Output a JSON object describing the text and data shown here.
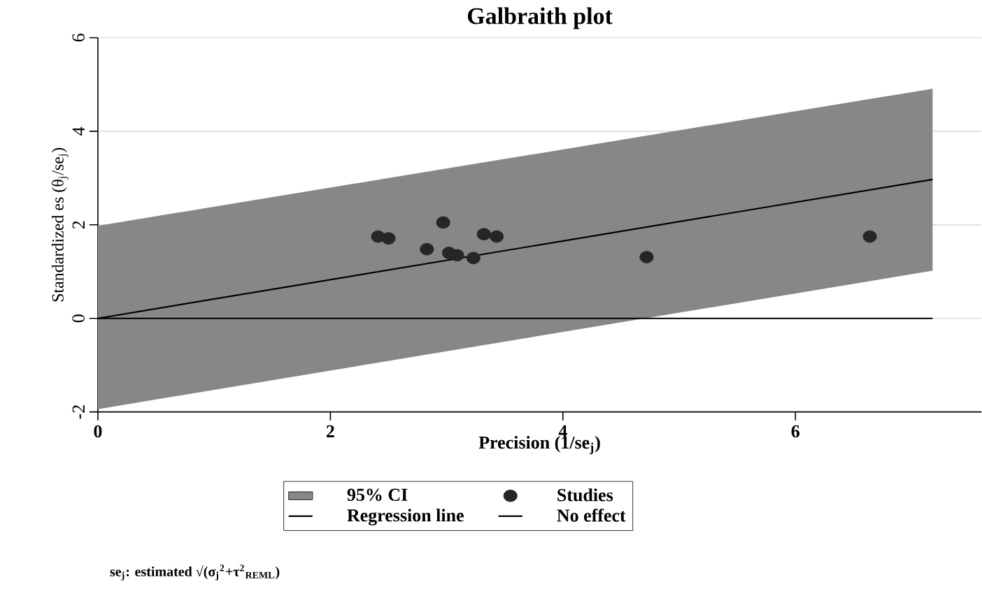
{
  "chart_data": {
    "type": "scatter",
    "title": "Galbraith plot",
    "xlabel": "Precision (1/se$_{j}$)",
    "ylabel": "Standardized es  (θ$_{j}$/se$_{j}$)",
    "xlim": [
      0,
      7.6
    ],
    "ylim": [
      -2,
      6
    ],
    "xticks": [
      0,
      2,
      4,
      6
    ],
    "yticks": [
      -2,
      0,
      2,
      4,
      6
    ],
    "grid": "y",
    "legend": "bottom",
    "series": [
      {
        "name": "95% CI",
        "type": "area",
        "color": "#878787"
      },
      {
        "name": "Studies",
        "color": "#262626",
        "marker": "circle",
        "x": [
          2.41,
          2.5,
          2.83,
          2.97,
          3.02,
          3.09,
          3.23,
          3.32,
          3.43,
          4.72,
          6.64
        ],
        "values": [
          1.75,
          1.71,
          1.48,
          2.05,
          1.4,
          1.35,
          1.29,
          1.8,
          1.75,
          1.31,
          1.75
        ]
      },
      {
        "name": "Regression line",
        "type": "line",
        "color": "#000000",
        "x": [
          0,
          7.18
        ],
        "values": [
          0,
          2.97
        ],
        "lower": [
          -1.94,
          1.02
        ],
        "upper": [
          1.98,
          4.91
        ]
      },
      {
        "name": "No effect",
        "type": "line",
        "color": "#000000",
        "x": [
          0,
          7.18
        ],
        "values": [
          0,
          0
        ]
      }
    ],
    "annotations": [
      "se$_{j}$: estimated √(σ$_{j}$$^{2}$+τ$^{2}$$_{REML}$)"
    ]
  }
}
